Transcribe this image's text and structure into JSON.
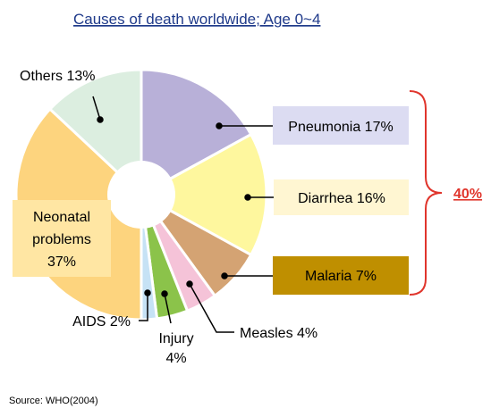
{
  "title": "Causes of death worldwide;  Age 0~4",
  "source": "Source: WHO(2004)",
  "bracket_label": "40%",
  "chart_data": {
    "type": "pie",
    "donut": true,
    "title": "Causes of death worldwide;  Age 0~4",
    "start_angle_deg": 0,
    "direction": "clockwise",
    "unit": "%",
    "slices": [
      {
        "category": "Pneumonia",
        "value": 17,
        "color": "#b8b0d8",
        "label": "Pneumonia 17%"
      },
      {
        "category": "Diarrhea",
        "value": 16,
        "color": "#fef79e",
        "label": "Diarrhea 16%"
      },
      {
        "category": "Malaria",
        "value": 7,
        "color": "#d4a373",
        "label": "Malaria 7%"
      },
      {
        "category": "Measles",
        "value": 4,
        "color": "#f5c3d8",
        "label": "Measles 4%"
      },
      {
        "category": "Injury",
        "value": 4,
        "color": "#8bc34a",
        "label_lines": [
          "Injury",
          "4%"
        ]
      },
      {
        "category": "AIDS",
        "value": 2,
        "color": "#c6e2f5",
        "label": "AIDS 2%"
      },
      {
        "category": "Neonatal problems",
        "value": 37,
        "color": "#fdd47e",
        "label_lines": [
          "Neonatal",
          "problems",
          "37%"
        ]
      },
      {
        "category": "Others",
        "value": 13,
        "color": "#dceee0",
        "label": "Others 13%"
      }
    ],
    "label_box_colors": {
      "Pneumonia": "#dcdcf2",
      "Diarrhea": "#fff6d2",
      "Malaria": "#bf8f00",
      "Neonatal problems": "#ffe6a3"
    },
    "bracket": {
      "spans": [
        "Pneumonia",
        "Diarrhea",
        "Malaria"
      ],
      "total": "40%",
      "color": "#e0352c"
    }
  }
}
